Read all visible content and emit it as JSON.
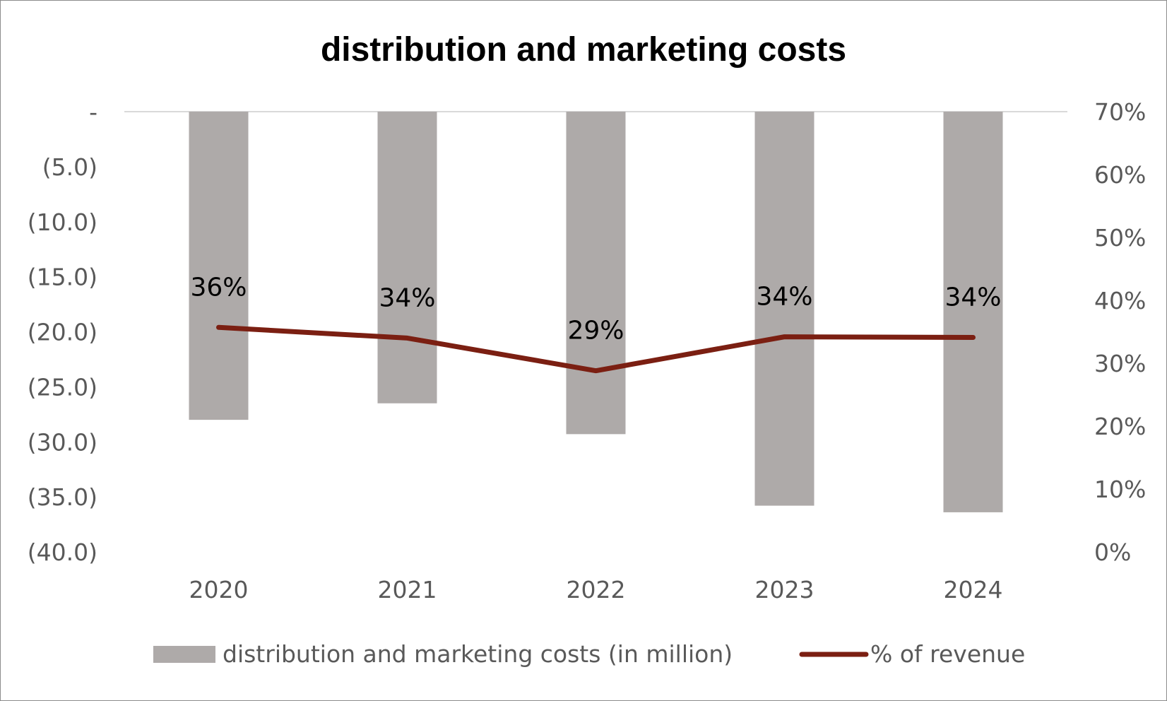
{
  "chart_data": {
    "type": "bar",
    "title": "distribution and marketing costs",
    "categories": [
      "2020",
      "2021",
      "2022",
      "2023",
      "2024"
    ],
    "series": [
      {
        "name": "distribution and marketing costs (in million)",
        "type": "bar",
        "axis": "left",
        "color": "#aeaaa9",
        "values": [
          -28.0,
          -26.5,
          -29.3,
          -35.8,
          -36.4
        ]
      },
      {
        "name": "% of revenue",
        "type": "line",
        "axis": "right",
        "color": "#7b1f12",
        "values": [
          0.357,
          0.34,
          0.288,
          0.342,
          0.341
        ],
        "labels": [
          "36%",
          "34%",
          "29%",
          "34%",
          "34%"
        ]
      }
    ],
    "y_left": {
      "ylim": [
        -40,
        0
      ],
      "ticks": [
        0,
        -5,
        -10,
        -15,
        -20,
        -25,
        -30,
        -35,
        -40
      ],
      "tick_labels": [
        "-",
        "(5.0)",
        "(10.0)",
        "(15.0)",
        "(20.0)",
        "(25.0)",
        "(30.0)",
        "(35.0)",
        "(40.0)"
      ]
    },
    "y_right": {
      "ylim": [
        0,
        0.7
      ],
      "ticks": [
        0.7,
        0.6,
        0.5,
        0.4,
        0.3,
        0.2,
        0.1,
        0
      ],
      "tick_labels": [
        "70%",
        "60%",
        "50%",
        "40%",
        "30%",
        "20%",
        "10%",
        "0%"
      ]
    },
    "xlabel": "",
    "ylabel": "",
    "grid": false,
    "legend_position": "bottom"
  }
}
